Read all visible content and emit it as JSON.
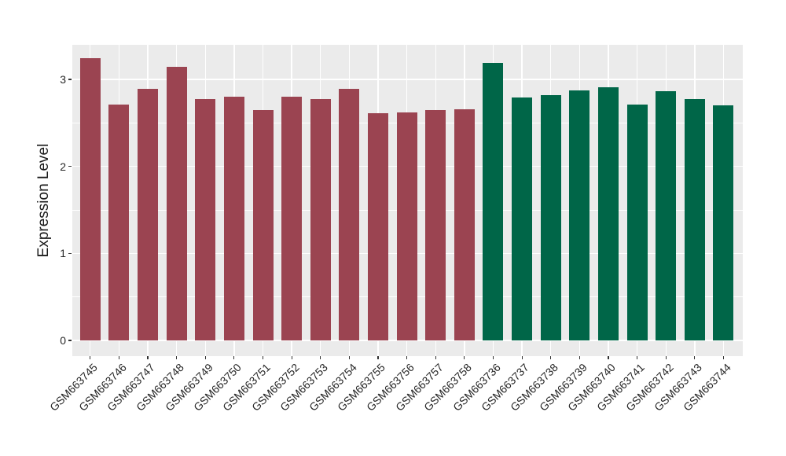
{
  "chart": {
    "panel_background": "#EBEBEB",
    "grid_color": "#FFFFFF",
    "axis_text_color": "#262626",
    "y_axis": {
      "title": "Expression Level",
      "tick_labels": [
        "0",
        "1",
        "2",
        "3"
      ],
      "tick_values": [
        0,
        1,
        2,
        3
      ],
      "minor_tick_values": [
        0.5,
        1.5,
        2.5
      ]
    }
  },
  "chart_data": {
    "type": "bar",
    "title": "",
    "xlabel": "",
    "ylabel": "Expression Level",
    "ylim": [
      0,
      3.4
    ],
    "grid": true,
    "legend": false,
    "categories": [
      "GSM663745",
      "GSM663746",
      "GSM663747",
      "GSM663748",
      "GSM663749",
      "GSM663750",
      "GSM663751",
      "GSM663752",
      "GSM663753",
      "GSM663754",
      "GSM663755",
      "GSM663756",
      "GSM663757",
      "GSM663758",
      "GSM663736",
      "GSM663737",
      "GSM663738",
      "GSM663739",
      "GSM663740",
      "GSM663741",
      "GSM663742",
      "GSM663743",
      "GSM663744"
    ],
    "values": [
      3.24,
      2.71,
      2.89,
      3.14,
      2.77,
      2.8,
      2.65,
      2.8,
      2.77,
      2.89,
      2.61,
      2.62,
      2.65,
      2.66,
      3.19,
      2.79,
      2.82,
      2.87,
      2.91,
      2.71,
      2.86,
      2.77,
      2.7
    ],
    "groups": [
      "A",
      "A",
      "A",
      "A",
      "A",
      "A",
      "A",
      "A",
      "A",
      "A",
      "A",
      "A",
      "A",
      "A",
      "B",
      "B",
      "B",
      "B",
      "B",
      "B",
      "B",
      "B",
      "B"
    ],
    "group_colors": {
      "A": "#9B4451",
      "B": "#006648"
    }
  }
}
